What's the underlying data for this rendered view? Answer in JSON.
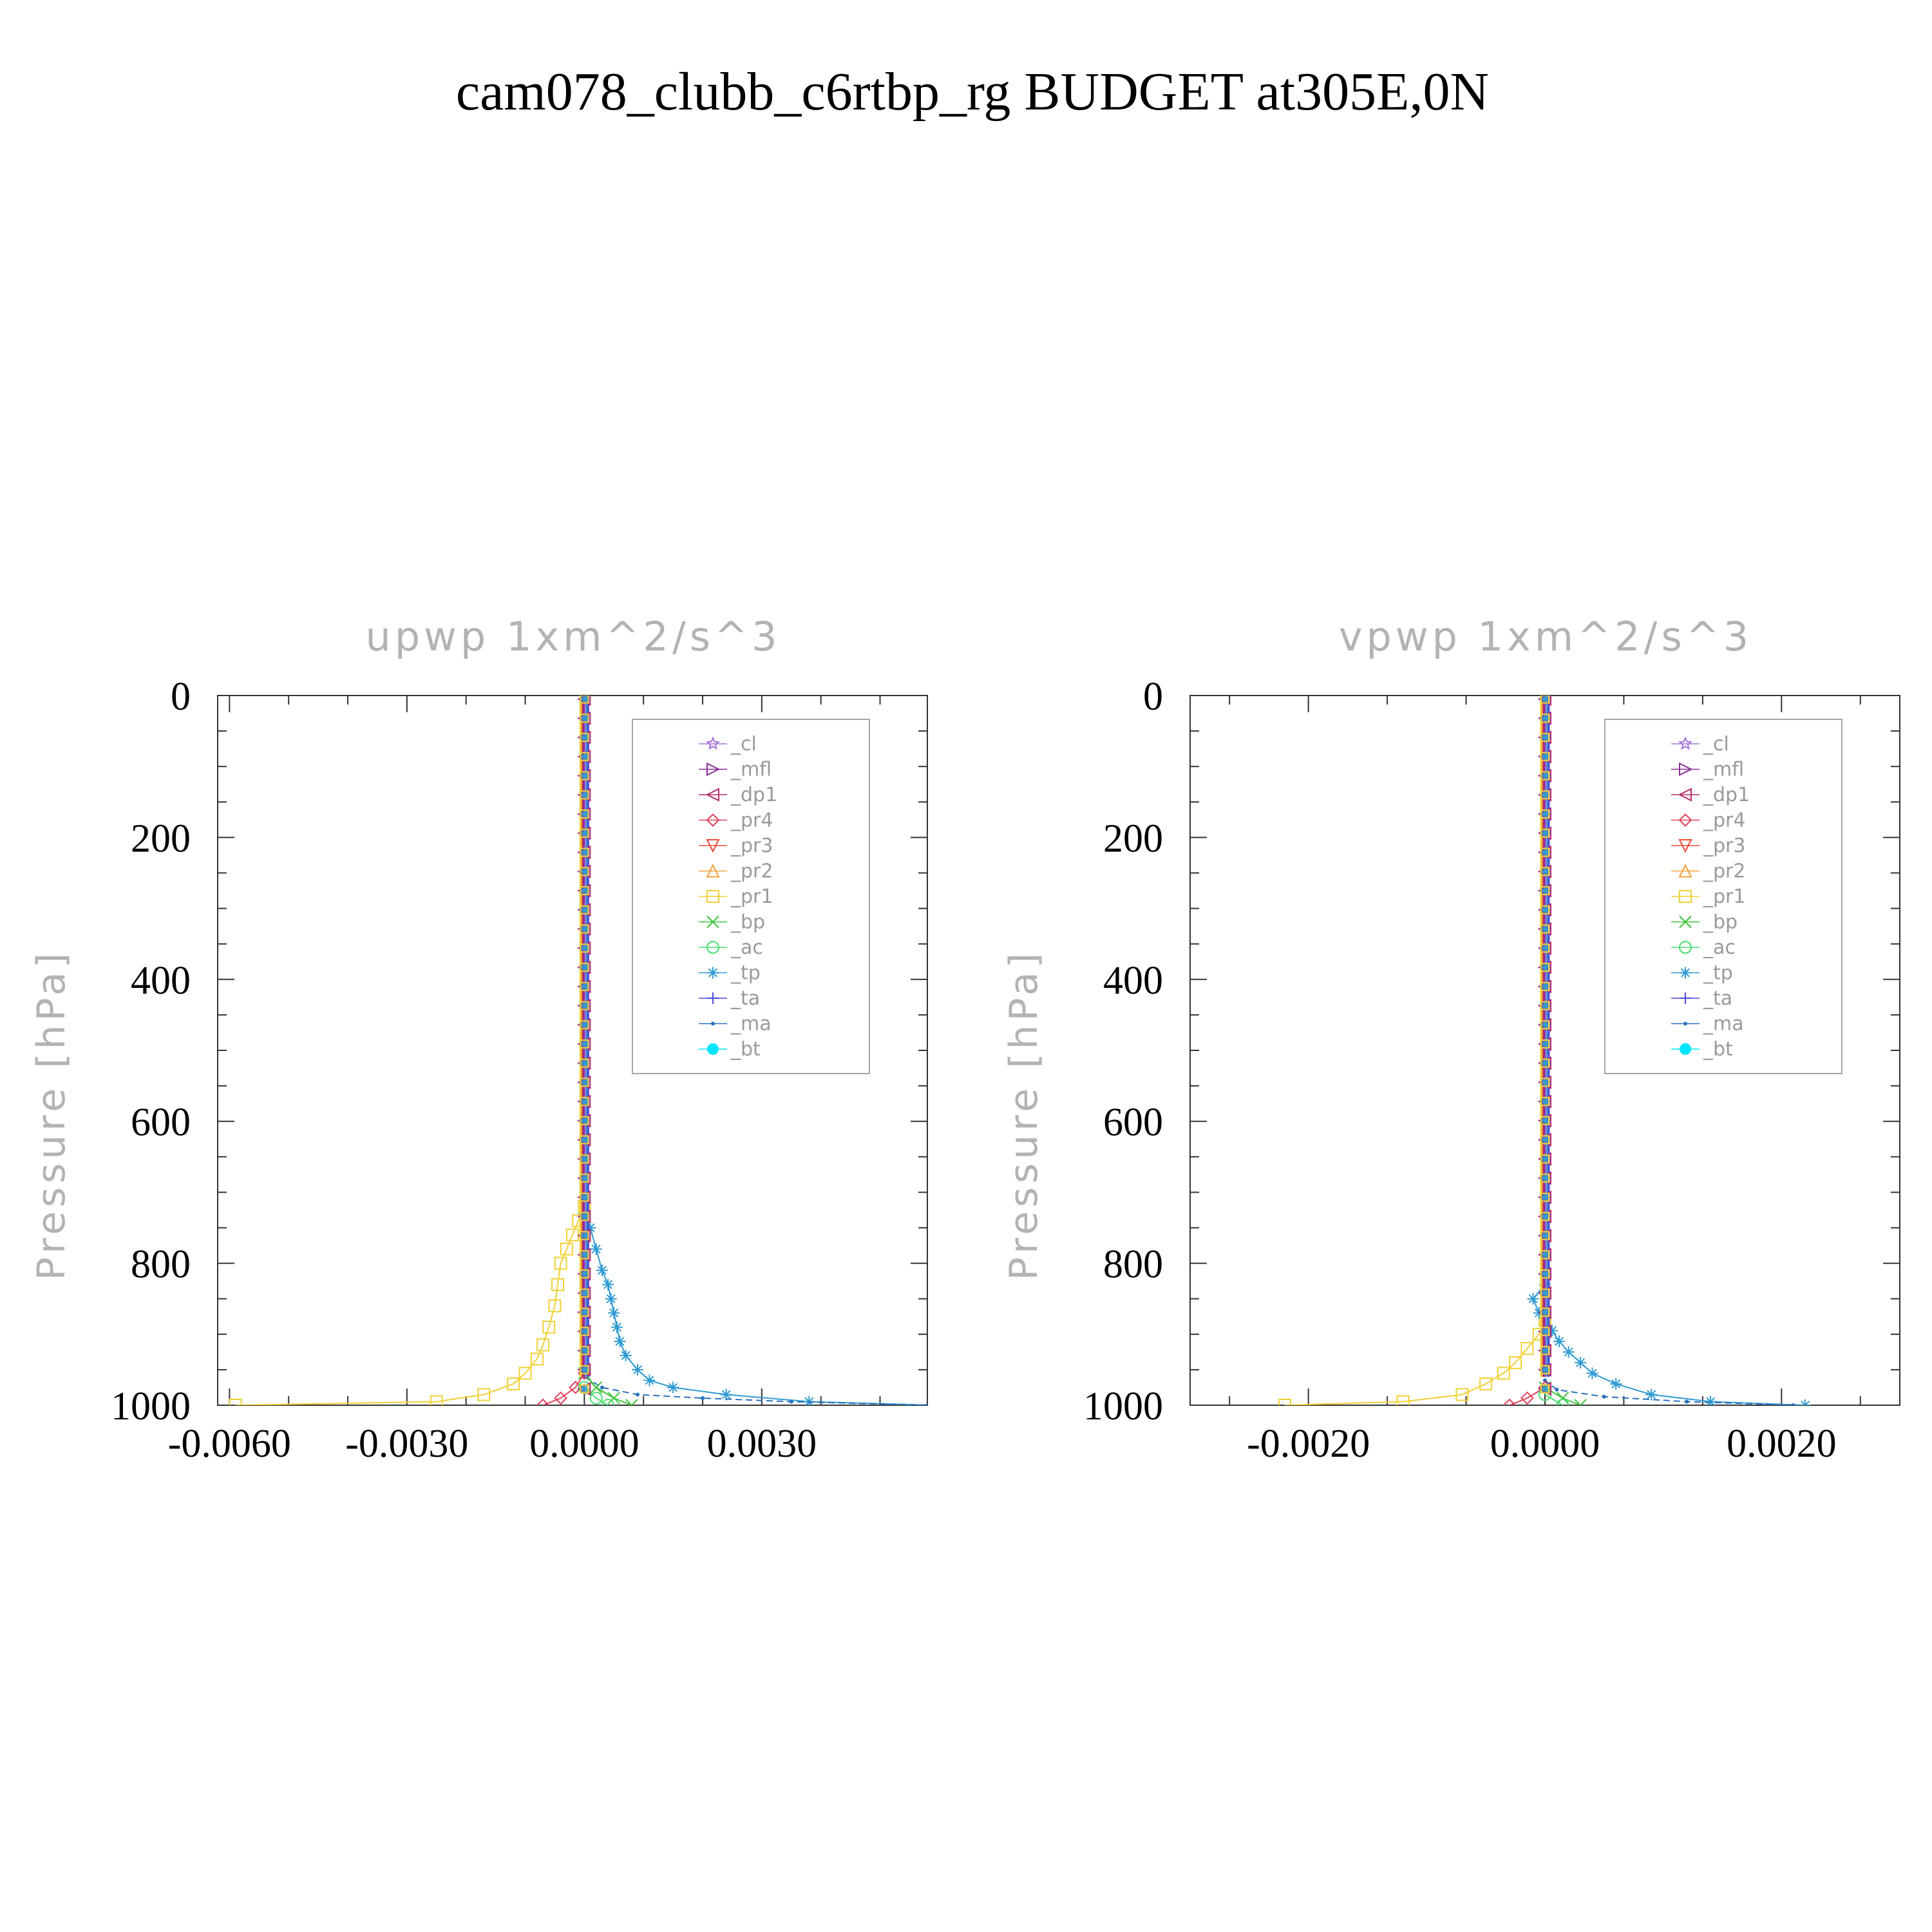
{
  "figure": {
    "title": "cam078_clubb_c6rtbp_rg  BUDGET at305E,0N"
  },
  "legend": [
    {
      "label": "_cl",
      "color": "#a672d8",
      "marker": "star"
    },
    {
      "label": "_mfl",
      "color": "#8a2f98",
      "marker": "tri-right"
    },
    {
      "label": "_dp1",
      "color": "#b52a6a",
      "marker": "tri-left"
    },
    {
      "label": "_pr4",
      "color": "#e0405a",
      "marker": "diamond"
    },
    {
      "label": "_pr3",
      "color": "#f04a3a",
      "marker": "tri-down"
    },
    {
      "label": "_pr2",
      "color": "#f3a13a",
      "marker": "tri-up"
    },
    {
      "label": "_pr1",
      "color": "#f2d033",
      "marker": "square"
    },
    {
      "label": "_bp",
      "color": "#3cc43c",
      "marker": "x"
    },
    {
      "label": "_ac",
      "color": "#4ade6e",
      "marker": "circle"
    },
    {
      "label": "_tp",
      "color": "#2f9bd2",
      "marker": "asterisk"
    },
    {
      "label": "_ta",
      "color": "#4a4ad6",
      "marker": "plus"
    },
    {
      "label": "_ma",
      "color": "#2870c0",
      "marker": "dot"
    },
    {
      "label": "_bt",
      "color": "#00e5ff",
      "marker": "filled-circle"
    }
  ],
  "chart_data": [
    {
      "type": "line",
      "title": "upwp    1xm^2/s^3",
      "ylabel": "Pressure  [hPa]",
      "xlim": [
        -0.0062,
        0.0058
      ],
      "ylim": [
        1000,
        0
      ],
      "xticks": [
        -0.006,
        -0.003,
        0.0,
        0.003
      ],
      "xtick_labels": [
        "-0.0060",
        "-0.0030",
        "0.0000",
        "0.0030"
      ],
      "yticks": [
        0,
        200,
        400,
        600,
        800,
        1000
      ],
      "ytick_labels": [
        "0",
        "200",
        "400",
        "600",
        "800",
        "1000"
      ],
      "legend_position": "top-right",
      "series": [
        {
          "name": "_pr1",
          "profile": [
            [
              1000,
              -0.0059
            ],
            [
              995,
              -0.0025
            ],
            [
              985,
              -0.0017
            ],
            [
              970,
              -0.0012
            ],
            [
              955,
              -0.001
            ],
            [
              935,
              -0.0008
            ],
            [
              915,
              -0.0007
            ],
            [
              890,
              -0.0006
            ],
            [
              860,
              -0.0005
            ],
            [
              830,
              -0.00045
            ],
            [
              800,
              -0.0004
            ],
            [
              780,
              -0.0003
            ],
            [
              760,
              -0.0002
            ],
            [
              740,
              -0.0001
            ],
            [
              720,
              0
            ]
          ]
        },
        {
          "name": "_tp",
          "profile": [
            [
              1000,
              0.0059
            ],
            [
              995,
              0.0038
            ],
            [
              985,
              0.0024
            ],
            [
              975,
              0.0015
            ],
            [
              965,
              0.0011
            ],
            [
              950,
              0.0009
            ],
            [
              930,
              0.0007
            ],
            [
              910,
              0.0006
            ],
            [
              890,
              0.00055
            ],
            [
              870,
              0.0005
            ],
            [
              850,
              0.00045
            ],
            [
              830,
              0.0004
            ],
            [
              810,
              0.0003
            ],
            [
              780,
              0.0002
            ],
            [
              750,
              0.0001
            ],
            [
              730,
              0
            ]
          ]
        },
        {
          "name": "_ma",
          "profile": [
            [
              1000,
              0.0058
            ],
            [
              995,
              0.0035
            ],
            [
              990,
              0.002
            ],
            [
              985,
              0.0009
            ],
            [
              975,
              0.0003
            ],
            [
              960,
              0
            ]
          ]
        },
        {
          "name": "_pr4",
          "profile": [
            [
              1000,
              -0.0007
            ],
            [
              990,
              -0.0004
            ],
            [
              975,
              -0.00015
            ],
            [
              955,
              0
            ]
          ]
        },
        {
          "name": "_bp",
          "profile": [
            [
              1000,
              0.0008
            ],
            [
              990,
              0.0005
            ],
            [
              975,
              0.0002
            ],
            [
              955,
              0
            ]
          ]
        },
        {
          "name": "_ac",
          "profile": [
            [
              1000,
              0.0004
            ],
            [
              990,
              0.0002
            ],
            [
              975,
              0
            ]
          ]
        }
      ]
    },
    {
      "type": "line",
      "title": "vpwp    1xm^2/s^3",
      "ylabel": "Pressure  [hPa]",
      "xlim": [
        -0.003,
        0.003
      ],
      "ylim": [
        1000,
        0
      ],
      "xticks": [
        -0.002,
        0.0,
        0.002
      ],
      "xtick_labels": [
        "-0.0020",
        "0.0000",
        "0.0020"
      ],
      "yticks": [
        0,
        200,
        400,
        600,
        800,
        1000
      ],
      "ytick_labels": [
        "0",
        "200",
        "400",
        "600",
        "800",
        "1000"
      ],
      "legend_position": "top-right",
      "series": [
        {
          "name": "_pr1",
          "profile": [
            [
              1000,
              -0.0022
            ],
            [
              995,
              -0.0012
            ],
            [
              985,
              -0.0007
            ],
            [
              970,
              -0.0005
            ],
            [
              955,
              -0.00035
            ],
            [
              940,
              -0.00025
            ],
            [
              920,
              -0.00015
            ],
            [
              900,
              -5e-05
            ],
            [
              880,
              0
            ]
          ]
        },
        {
          "name": "_tp",
          "profile": [
            [
              1000,
              0.0022
            ],
            [
              995,
              0.0014
            ],
            [
              985,
              0.0009
            ],
            [
              970,
              0.0006
            ],
            [
              955,
              0.0004
            ],
            [
              940,
              0.0003
            ],
            [
              925,
              0.0002
            ],
            [
              910,
              0.00012
            ],
            [
              895,
              6e-05
            ],
            [
              870,
              -5e-05
            ],
            [
              850,
              -0.0001
            ],
            [
              830,
              0
            ]
          ]
        },
        {
          "name": "_ma",
          "profile": [
            [
              1000,
              0.0021
            ],
            [
              995,
              0.0012
            ],
            [
              988,
              0.0005
            ],
            [
              978,
              0.0001
            ],
            [
              965,
              0
            ]
          ]
        },
        {
          "name": "_pr4",
          "profile": [
            [
              1000,
              -0.0003
            ],
            [
              990,
              -0.00015
            ],
            [
              975,
              0
            ]
          ]
        },
        {
          "name": "_bp",
          "profile": [
            [
              1000,
              0.0003
            ],
            [
              990,
              0.00015
            ],
            [
              975,
              0
            ]
          ]
        },
        {
          "name": "_ac",
          "profile": [
            [
              1000,
              0.00015
            ],
            [
              985,
              0
            ]
          ]
        }
      ]
    }
  ]
}
